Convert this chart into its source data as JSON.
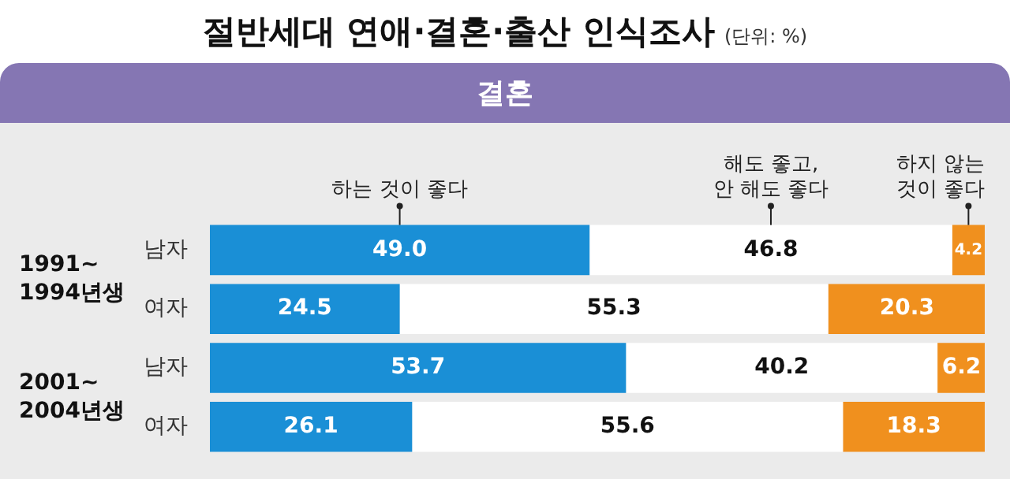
{
  "chart_data": {
    "type": "bar",
    "orientation": "horizontal",
    "stacked": true,
    "title": "절반세대 연애·결혼·출산 인식조사",
    "subtitle": "결혼",
    "annotations": [
      "(단위: %)",
      "1991~\n1994년생",
      "2001~\n2004년생"
    ],
    "categories": [
      "남자",
      "여자",
      "남자",
      "여자"
    ],
    "series": [
      {
        "name": "하는 것이 좋다",
        "color": "#1a8fd6",
        "values": [
          49.0,
          24.5,
          53.7,
          26.1
        ],
        "value_labels": [
          "49.0",
          "24.5",
          "53.7",
          "26.1"
        ]
      },
      {
        "name": "해도 좋고,\n안 해도 좋다",
        "color": "#ffffff",
        "values": [
          46.8,
          55.3,
          40.2,
          55.6
        ],
        "value_labels": [
          "46.8",
          "55.3",
          "40.2",
          "55.6"
        ]
      },
      {
        "name": "하지 않는\n것이 좋다",
        "color": "#f0901e",
        "values": [
          4.2,
          20.3,
          6.2,
          18.3
        ],
        "value_labels": [
          "4.2",
          "20.3",
          "6.2",
          "18.3"
        ]
      }
    ],
    "xlim": [
      0,
      100
    ],
    "tick_labels": "y"
  }
}
